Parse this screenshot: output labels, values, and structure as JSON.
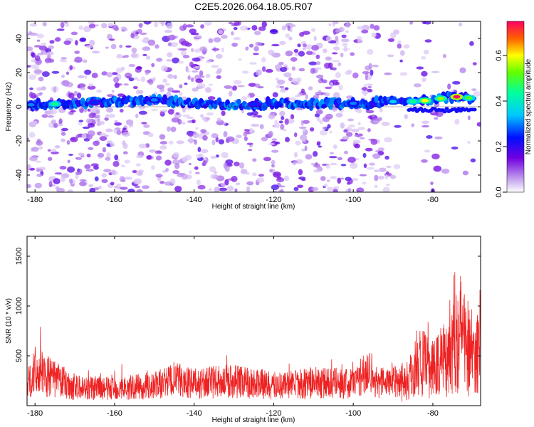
{
  "figure_title": "C2E5.2026.064.18.05.R07",
  "colors": {
    "snr_line": "#ee2222",
    "spectral_band": "#1f00c8",
    "frame": "#000000"
  },
  "chart_data": [
    {
      "type": "heatmap",
      "title": "C2E5.2026.064.18.05.R07",
      "xlabel": "Height of straight line (km)",
      "ylabel": "Frequency (Hz)",
      "xlim": [
        -182,
        -68
      ],
      "ylim": [
        -50,
        50
      ],
      "x_ticks": [
        -180,
        -160,
        -140,
        -120,
        -100,
        -80
      ],
      "x_tick_labels": [
        "-180",
        "-160",
        "-140",
        "-120",
        "-100",
        "-80"
      ],
      "y_ticks": [
        -40,
        -20,
        0,
        20,
        40
      ],
      "y_tick_labels": [
        "-40",
        "-20",
        "0",
        "20",
        "40"
      ],
      "description_series": {
        "name": "spectral band center",
        "x": [
          -182,
          -170,
          -160,
          -150,
          -140,
          -130,
          -120,
          -110,
          -100,
          -90,
          -85,
          -80,
          -75,
          -70
        ],
        "y": [
          1,
          2,
          3,
          4,
          2,
          1,
          2,
          2,
          2,
          3,
          3,
          4,
          6,
          5
        ]
      },
      "band_peak_amplitude": [
        {
          "x": -181,
          "amp": 0.3
        },
        {
          "x": -175,
          "amp": 0.45
        },
        {
          "x": -165,
          "amp": 0.25
        },
        {
          "x": -150,
          "amp": 0.3
        },
        {
          "x": -125,
          "amp": 0.25
        },
        {
          "x": -100,
          "amp": 0.3
        },
        {
          "x": -90,
          "amp": 0.35
        },
        {
          "x": -85,
          "amp": 0.45
        },
        {
          "x": -82,
          "amp": 0.6
        },
        {
          "x": -78,
          "amp": 0.55
        },
        {
          "x": -74,
          "amp": 0.75
        },
        {
          "x": -71,
          "amp": 0.5
        }
      ],
      "colorbar": {
        "label": "Normalized spectral amplitude",
        "range": [
          0,
          0.75
        ],
        "ticks": [
          0.0,
          0.2,
          0.4,
          0.6
        ],
        "tick_labels": [
          "0.0",
          "0.2",
          "0.4",
          "0.6"
        ]
      }
    },
    {
      "type": "line",
      "xlabel": "Height of straight line (km)",
      "ylabel": "SNR (10 * v/v)",
      "xlim": [
        -182,
        -68
      ],
      "ylim": [
        0,
        1700
      ],
      "x_ticks": [
        -180,
        -160,
        -140,
        -120,
        -100,
        -80
      ],
      "x_tick_labels": [
        "-180",
        "-160",
        "-140",
        "-120",
        "-100",
        "-80"
      ],
      "y_ticks": [
        500,
        1000,
        1500
      ],
      "y_tick_labels": [
        "500",
        "1000",
        "1500"
      ],
      "series": [
        {
          "name": "SNR",
          "x": [
            -182,
            -180,
            -170,
            -160,
            -150,
            -145,
            -140,
            -130,
            -120,
            -110,
            -100,
            -96,
            -94,
            -90,
            -86,
            -84,
            -80,
            -76,
            -74,
            -72,
            -70,
            -68
          ],
          "y": [
            200,
            350,
            180,
            170,
            200,
            260,
            220,
            250,
            200,
            230,
            220,
            380,
            220,
            260,
            250,
            450,
            350,
            550,
            800,
            700,
            500,
            600
          ]
        }
      ]
    }
  ]
}
